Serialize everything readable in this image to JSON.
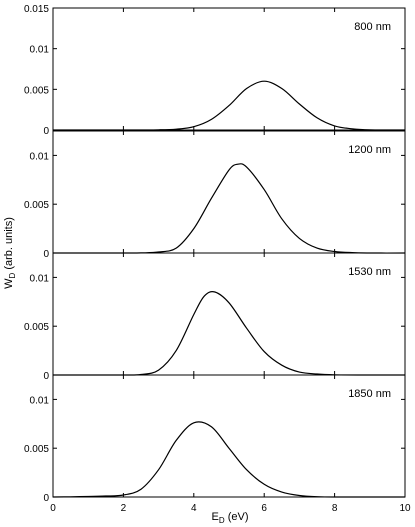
{
  "chart_data": [
    {
      "type": "line",
      "panel_label": "800 nm",
      "ylim": [
        0,
        0.015
      ],
      "yticks": [
        0,
        0.005,
        0.01,
        0.015
      ],
      "ytick_labels": [
        "0",
        "0.005",
        "0.01",
        "0.015"
      ],
      "x": [
        0,
        1,
        2,
        3,
        3.5,
        4,
        4.5,
        5,
        5.5,
        6,
        6.5,
        7,
        7.5,
        8,
        8.5,
        9,
        10
      ],
      "y": [
        0,
        0,
        0,
        2e-05,
        0.0001,
        0.0004,
        0.0013,
        0.003,
        0.0051,
        0.006,
        0.0051,
        0.0032,
        0.0015,
        0.0005,
        0.00015,
        3e-05,
        0
      ]
    },
    {
      "type": "line",
      "panel_label": "1200 nm",
      "ylim": [
        0,
        0.0125
      ],
      "yticks": [
        0,
        0.005,
        0.01
      ],
      "ytick_labels": [
        "0",
        "0.005",
        "0.01"
      ],
      "x": [
        0,
        1,
        2,
        2.5,
        3,
        3.5,
        4,
        4.5,
        5,
        5.25,
        5.5,
        6,
        6.5,
        7,
        7.5,
        8,
        8.5,
        9,
        10
      ],
      "y": [
        0,
        0,
        0,
        1e-05,
        0.0001,
        0.0005,
        0.0025,
        0.0056,
        0.0085,
        0.0091,
        0.0088,
        0.0065,
        0.0035,
        0.0015,
        0.0005,
        0.00015,
        4e-05,
        0,
        0
      ]
    },
    {
      "type": "line",
      "panel_label": "1530 nm",
      "ylim": [
        0,
        0.0125
      ],
      "yticks": [
        0,
        0.005,
        0.01
      ],
      "ytick_labels": [
        "0",
        "0.005",
        "0.01"
      ],
      "x": [
        0,
        1,
        2,
        2.5,
        3,
        3.5,
        4,
        4.3,
        4.6,
        5,
        5.5,
        6,
        6.5,
        7,
        7.5,
        8,
        9,
        10
      ],
      "y": [
        0,
        0,
        0,
        5e-05,
        0.0005,
        0.0025,
        0.0062,
        0.0081,
        0.0085,
        0.0074,
        0.0048,
        0.0024,
        0.001,
        0.0003,
        0.0001,
        2e-05,
        0,
        0
      ]
    },
    {
      "type": "line",
      "panel_label": "1850 nm",
      "ylim": [
        0,
        0.0125
      ],
      "yticks": [
        0,
        0.005,
        0.01
      ],
      "ytick_labels": [
        "0",
        "0.005",
        "0.01"
      ],
      "x": [
        0,
        0.5,
        1,
        1.5,
        2,
        2.5,
        3,
        3.5,
        4,
        4.5,
        5,
        5.5,
        6,
        6.5,
        7,
        7.5,
        8,
        9,
        10
      ],
      "y": [
        0,
        2e-05,
        5e-05,
        0.0001,
        0.0002,
        0.0008,
        0.0028,
        0.0058,
        0.0076,
        0.0072,
        0.005,
        0.0028,
        0.0013,
        0.0005,
        0.00015,
        3e-05,
        0,
        0,
        0
      ]
    }
  ],
  "x_axis": {
    "xlim": [
      0,
      10
    ],
    "ticks": [
      0,
      2,
      4,
      6,
      8,
      10
    ],
    "tick_labels": [
      "0",
      "2",
      "4",
      "6",
      "8",
      "10"
    ],
    "label_main": "E",
    "label_sub": "D",
    "label_suffix": " (eV)"
  },
  "y_axis": {
    "label_main": "W",
    "label_sub": "D",
    "label_suffix": " (arb. units)"
  },
  "grid": false
}
